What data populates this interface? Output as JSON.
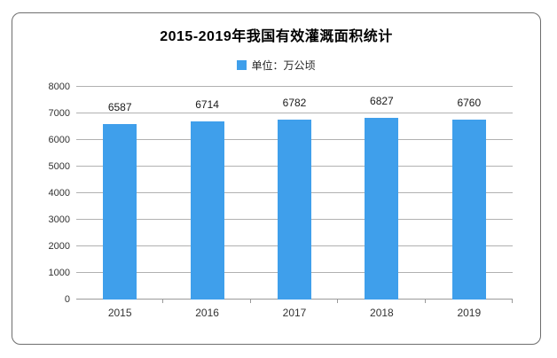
{
  "chart_data": {
    "type": "bar",
    "title": "2015-2019年我国有效灌溉面积统计",
    "series_name": "单位：万公顷",
    "unit": "万公顷",
    "categories": [
      "2015",
      "2016",
      "2017",
      "2018",
      "2019"
    ],
    "values": [
      6587,
      6714,
      6782,
      6827,
      6760
    ],
    "ylim": [
      0,
      8000
    ],
    "ytick_interval": 1000,
    "ytick_labels": [
      "0",
      "1000",
      "2000",
      "3000",
      "4000",
      "5000",
      "6000",
      "7000",
      "8000"
    ],
    "grid": true,
    "legend_position": "top-center",
    "value_labels": true,
    "bar_color": "#3f9feb",
    "gridline_color": "#b1b1b1",
    "axis_color": "#9a9a9a",
    "text_color": "#333333"
  }
}
